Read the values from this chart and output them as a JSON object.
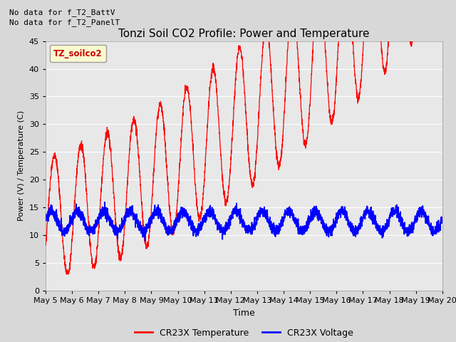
{
  "title": "Tonzi Soil CO2 Profile: Power and Temperature",
  "ylabel": "Power (V) / Temperature (C)",
  "xlabel": "Time",
  "ylim": [
    0,
    45
  ],
  "yticks": [
    0,
    5,
    10,
    15,
    20,
    25,
    30,
    35,
    40,
    45
  ],
  "no_data_text": [
    "No data for f_T2_BattV",
    "No data for f_T2_PanelT"
  ],
  "legend_label_box": "TZ_soilco2",
  "legend_temp": "CR23X Temperature",
  "legend_volt": "CR23X Voltage",
  "temp_color": "#ff0000",
  "volt_color": "#0000ff",
  "background_color": "#d8d8d8",
  "plot_bg_color": "#e8e8e8",
  "grid_color": "#ffffff",
  "x_tick_days": [
    5,
    6,
    7,
    8,
    9,
    10,
    11,
    12,
    13,
    14,
    15,
    16,
    17,
    18,
    19,
    20
  ]
}
